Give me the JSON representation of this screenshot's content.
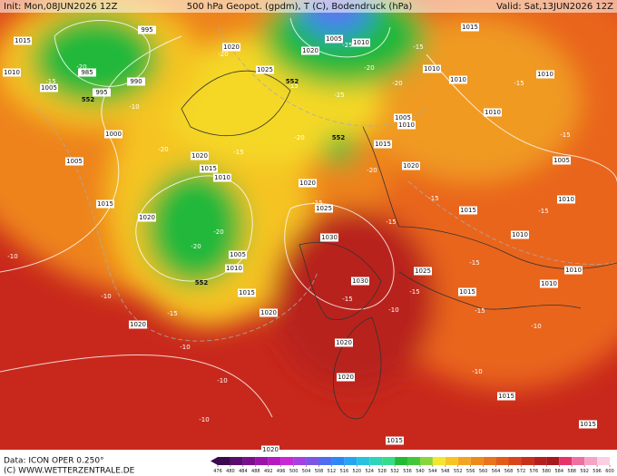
{
  "header": {
    "init": "Init: Mon,08JUN2026 12Z",
    "field": "500 hPa Geopot. (gpdm), T (C), Bodendruck (hPa)",
    "valid": "Valid: Sat,13JUN2026 12Z"
  },
  "footer": {
    "source": "Data: ICON OPER 0.250°",
    "copyright": "(C) WWW.WETTERZENTRALE.DE"
  },
  "colorbar": {
    "ticks": [
      476,
      480,
      484,
      488,
      492,
      496,
      500,
      504,
      508,
      512,
      516,
      520,
      524,
      528,
      532,
      536,
      540,
      544,
      548,
      552,
      556,
      560,
      564,
      568,
      572,
      576,
      580,
      584,
      588,
      592,
      596,
      600
    ],
    "colors": [
      "#3b0a4f",
      "#5a0d6e",
      "#7a108c",
      "#9a14aa",
      "#b619c2",
      "#c928d6",
      "#a640e0",
      "#7d55e6",
      "#4f6cf0",
      "#2f86f5",
      "#25a6f0",
      "#27c2e0",
      "#2cd6b8",
      "#35dd8a",
      "#22bb33",
      "#40c838",
      "#8ad53a",
      "#f3e62c",
      "#f8c323",
      "#f4a520",
      "#ee8a1c",
      "#ea7419",
      "#e35c17",
      "#d9441a",
      "#c9301c",
      "#b5201e",
      "#a8181f",
      "#e6336a",
      "#f06fa0",
      "#f6a4c6",
      "#fbcfe1"
    ]
  },
  "map": {
    "pressure_labels": [
      1015,
      995,
      985,
      990,
      995,
      1005,
      1000,
      1005,
      1015,
      1020,
      1010,
      1015,
      1020,
      1020,
      1025,
      1005,
      1010,
      1020,
      1010,
      1005,
      1010,
      1015,
      1020,
      1010,
      1005,
      1010,
      1015,
      1010,
      1020,
      1025,
      1030,
      1030,
      1005,
      1010,
      1015,
      1020,
      1020,
      1025,
      1015,
      1010,
      1010,
      1020,
      1020,
      1015,
      1015,
      1020,
      1015,
      1010,
      1010,
      1015,
      1010
    ],
    "temperature_labels": [
      -20,
      -15,
      -10,
      -20,
      -15,
      -20,
      -15,
      -20,
      -25,
      -25,
      -20,
      -15,
      -20,
      -10,
      -10,
      -15,
      -10,
      -15,
      -15,
      -15,
      -15,
      -10,
      -15,
      -15,
      -10,
      -10,
      -15,
      -15,
      -20,
      -20,
      -10,
      -10,
      -15,
      -15,
      -20
    ],
    "geopotential_labels": [
      552,
      552,
      552,
      552
    ]
  }
}
